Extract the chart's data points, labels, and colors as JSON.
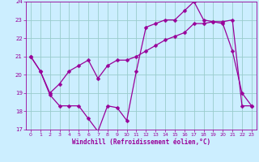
{
  "xlabel": "Windchill (Refroidissement éolien,°C)",
  "bg_color": "#cceeff",
  "line_color": "#990099",
  "grid_color": "#99cccc",
  "xlim": [
    -0.5,
    23.5
  ],
  "ylim": [
    17,
    24
  ],
  "yticks": [
    17,
    18,
    19,
    20,
    21,
    22,
    23,
    24
  ],
  "xticks": [
    0,
    1,
    2,
    3,
    4,
    5,
    6,
    7,
    8,
    9,
    10,
    11,
    12,
    13,
    14,
    15,
    16,
    17,
    18,
    19,
    20,
    21,
    22,
    23
  ],
  "line1_x": [
    0,
    1,
    2,
    3,
    4,
    5,
    6,
    7,
    8,
    9,
    10,
    11,
    12,
    13,
    14,
    15,
    16,
    17,
    18,
    19,
    20,
    21,
    22,
    23
  ],
  "line1_y": [
    21.0,
    20.2,
    18.9,
    18.3,
    18.3,
    18.3,
    17.6,
    16.9,
    18.3,
    18.2,
    17.5,
    20.2,
    22.6,
    22.8,
    23.0,
    23.0,
    23.5,
    24.0,
    23.0,
    22.9,
    22.8,
    21.3,
    19.0,
    18.3
  ],
  "line2_x": [
    0,
    1,
    2,
    3,
    4,
    5,
    6,
    7,
    8,
    9,
    10,
    11,
    12,
    13,
    14,
    15,
    16,
    17,
    18,
    19,
    20,
    21,
    22,
    23
  ],
  "line2_y": [
    21.0,
    20.2,
    19.0,
    19.5,
    20.2,
    20.5,
    20.8,
    19.8,
    20.5,
    20.8,
    20.8,
    21.0,
    21.3,
    21.6,
    21.9,
    22.1,
    22.3,
    22.8,
    22.8,
    22.9,
    22.9,
    23.0,
    18.3,
    18.3
  ],
  "markersize": 2.5,
  "linewidth": 0.9,
  "tick_fontsize": 4.5,
  "xlabel_fontsize": 5.5
}
